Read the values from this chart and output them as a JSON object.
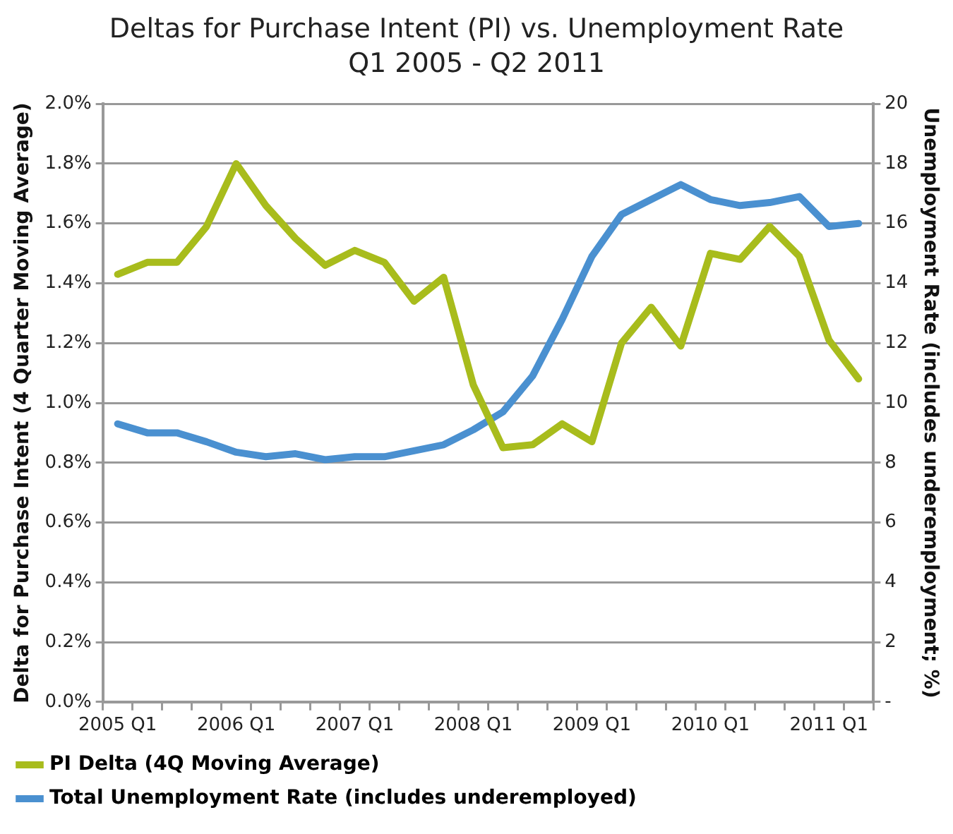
{
  "chart_data": {
    "type": "line",
    "title": "Deltas for Purchase Intent (PI) vs. Unemployment Rate",
    "subtitle": "Q1 2005 - Q2 2011",
    "ylabel": "Delta for Purchase Intent (4 Quarter Moving Average)",
    "y2label": "Unemployment Rate (includes underemployment; %)",
    "categories": [
      "2005 Q1",
      null,
      null,
      null,
      "2006 Q1",
      null,
      null,
      null,
      "2007 Q1",
      null,
      null,
      null,
      "2008 Q1",
      null,
      null,
      null,
      "2009 Q1",
      null,
      null,
      null,
      "2010 Q1",
      null,
      null,
      null,
      "2011 Q1",
      null
    ],
    "series": [
      {
        "name": "PI Delta (4Q Moving Average)",
        "color": "#a8bc1c",
        "values": [
          1.43,
          1.47,
          1.47,
          1.59,
          1.8,
          1.66,
          1.55,
          1.46,
          1.51,
          1.47,
          1.34,
          1.42,
          1.06,
          0.85,
          0.86,
          0.93,
          0.87,
          1.2,
          1.32,
          1.19,
          1.5,
          1.48,
          1.59,
          1.49,
          1.21,
          1.08
        ]
      },
      {
        "name": "Total Unemployment Rate (includes underemployed)",
        "color": "#4a90d0",
        "axis": "y2",
        "values": [
          9.3,
          9.0,
          9.0,
          8.7,
          8.35,
          8.2,
          8.3,
          8.1,
          8.2,
          8.2,
          8.4,
          8.6,
          9.1,
          9.7,
          10.9,
          12.8,
          14.9,
          16.3,
          16.8,
          17.3,
          16.8,
          16.6,
          16.7,
          16.9,
          15.9,
          16.0
        ]
      }
    ],
    "ylim": [
      0,
      2
    ],
    "yticks": [
      {
        "value": 0,
        "label": "0.0%"
      },
      {
        "value": 0.2,
        "label": "0.2%"
      },
      {
        "value": 0.4,
        "label": "0.4%"
      },
      {
        "value": 0.6,
        "label": "0.6%"
      },
      {
        "value": 0.8,
        "label": "0.8%"
      },
      {
        "value": 1.0,
        "label": "1.0%"
      },
      {
        "value": 1.2,
        "label": "1.2%"
      },
      {
        "value": 1.4,
        "label": "1.4%"
      },
      {
        "value": 1.6,
        "label": "1.6%"
      },
      {
        "value": 1.8,
        "label": "1.8%"
      },
      {
        "value": 2.0,
        "label": "2.0%"
      }
    ],
    "y2lim": [
      0,
      20
    ],
    "y2ticks": [
      {
        "value": 0,
        "label": "-"
      },
      2,
      4,
      6,
      8,
      10,
      12,
      14,
      16,
      18,
      20
    ],
    "grid": "y",
    "legend": "bottom",
    "marker": "none",
    "line_style": "solid"
  }
}
